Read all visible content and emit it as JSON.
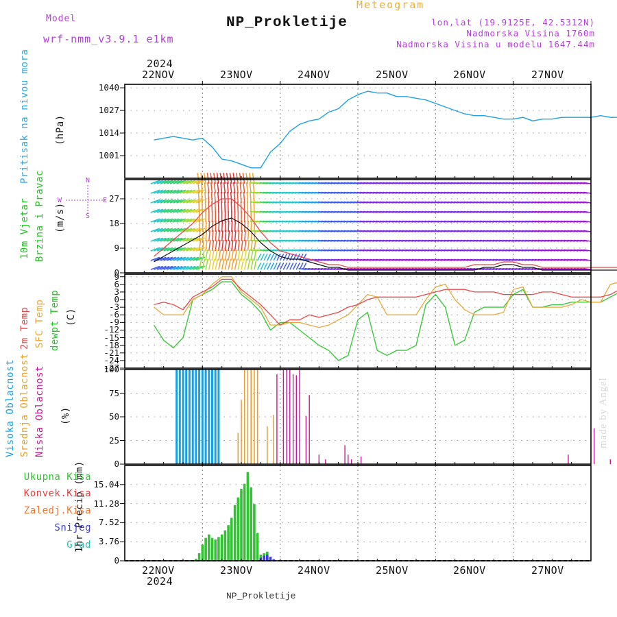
{
  "header": {
    "model_label": "Model",
    "model_name": "wrf-nmm_v3.9.1 e1km",
    "title": "NP_Prokletije",
    "meteogram_label": "Meteogram",
    "lonlat": "lon,lat (19.9125E, 42.5312N)",
    "elevation": "Nadmorska Visina 1760m",
    "model_elevation": "Nadmorska Visina u modelu 1647.44m",
    "footer_station": "NP_Prokletije",
    "watermark": "made by Angel"
  },
  "colors": {
    "pressure": "#1ea0e6",
    "temp2m": "#e84848",
    "sfc_temp": "#e8a838",
    "dewpt": "#3ac83a",
    "high_cloud": "#18a0e6",
    "mid_cloud": "#e8a030",
    "low_cloud": "#c8189a",
    "total_precip": "#33c233",
    "conv_precip": "#e83c3c",
    "freezing_precip": "#f07830",
    "snow": "#4040d8",
    "graupel": "#24c0b0",
    "header_purple": "#b03fd6"
  },
  "axes": {
    "year": "2024",
    "day_labels": [
      "22NOV",
      "23NOV",
      "24NOV",
      "25NOV",
      "26NOV",
      "27NOV"
    ]
  },
  "chart_data": [
    {
      "type": "line",
      "panel": "pressure",
      "title": "Pritisak na nivou mora",
      "ylabel": "(hPa)",
      "ylim": [
        988,
        1042
      ],
      "yticks": [
        1001,
        1014,
        1027,
        1040
      ],
      "x": [
        0,
        3,
        6,
        9,
        12,
        15,
        18,
        21,
        24,
        27,
        30,
        33,
        36,
        39,
        42,
        45,
        48,
        51,
        54,
        57,
        60,
        63,
        66,
        69,
        72,
        75,
        78,
        81,
        84,
        87,
        90,
        93,
        96,
        99,
        102,
        105,
        108,
        111,
        114,
        117,
        120,
        123,
        126,
        129,
        132,
        135,
        138,
        141,
        144
      ],
      "series": [
        {
          "values": [
            1010,
            1011,
            1012,
            1011,
            1010,
            1011,
            1006,
            999,
            998,
            996,
            994,
            994,
            1003,
            1008,
            1015,
            1019,
            1021,
            1022,
            1026,
            1028,
            1033,
            1036,
            1038,
            1037,
            1037,
            1035,
            1035,
            1034,
            1033,
            1031,
            1029,
            1027,
            1025,
            1024,
            1024,
            1023,
            1022,
            1022,
            1023,
            1021,
            1022,
            1022,
            1023,
            1023,
            1023,
            1023,
            1024,
            1023,
            1023
          ]
        }
      ]
    },
    {
      "type": "line",
      "panel": "wind",
      "title": "10m Vjetar Brzina i Pravac",
      "ylabel": "(m/s)",
      "compass": {
        "north": "N",
        "south": "S",
        "east": "E",
        "west": "W"
      },
      "ylim": [
        0,
        34
      ],
      "yticks": [
        0,
        9,
        18,
        27
      ],
      "x": [
        0,
        3,
        6,
        9,
        12,
        15,
        18,
        21,
        24,
        27,
        30,
        33,
        36,
        39,
        42,
        45,
        48,
        51,
        54,
        57,
        60,
        63,
        66,
        69,
        72,
        75,
        78,
        81,
        84,
        87,
        90,
        93,
        96,
        99,
        102,
        105,
        108,
        111,
        114,
        117,
        120,
        123,
        126,
        129,
        132,
        135,
        138,
        141,
        144
      ],
      "series": [
        {
          "name": "speed",
          "values": [
            4,
            6,
            8,
            10,
            12,
            14,
            17,
            19,
            20,
            18,
            15,
            11,
            8,
            6,
            5,
            5,
            4,
            3,
            2,
            2,
            1,
            1,
            1,
            1,
            1,
            1,
            1,
            1,
            1,
            1,
            1,
            1,
            1,
            1,
            2,
            2,
            3,
            3,
            2,
            2,
            1,
            1,
            1,
            1,
            1,
            1,
            1,
            1,
            1
          ]
        },
        {
          "name": "gust",
          "values": [
            6,
            9,
            12,
            15,
            18,
            22,
            25,
            27,
            27,
            24,
            20,
            15,
            11,
            8,
            7,
            6,
            5,
            4,
            3,
            3,
            2,
            2,
            2,
            2,
            2,
            2,
            2,
            2,
            2,
            2,
            2,
            2,
            2,
            3,
            3,
            3,
            4,
            4,
            3,
            3,
            2,
            2,
            2,
            2,
            2,
            2,
            2,
            2,
            2
          ]
        }
      ]
    },
    {
      "type": "line",
      "panel": "temperature",
      "title": "2m Temp / SFC Temp / dewpt Temp",
      "ylabel": "(C)",
      "ylim": [
        -27,
        10
      ],
      "yticks": [
        9,
        6,
        3,
        0,
        -3,
        -6,
        -9,
        -12,
        -15,
        -18,
        -21,
        -24,
        -27
      ],
      "x": [
        0,
        3,
        6,
        9,
        12,
        15,
        18,
        21,
        24,
        27,
        30,
        33,
        36,
        39,
        42,
        45,
        48,
        51,
        54,
        57,
        60,
        63,
        66,
        69,
        72,
        75,
        78,
        81,
        84,
        87,
        90,
        93,
        96,
        99,
        102,
        105,
        108,
        111,
        114,
        117,
        120,
        123,
        126,
        129,
        132,
        135,
        138,
        141,
        144
      ],
      "series": [
        {
          "name": "2m Temp",
          "values": [
            -2,
            -1,
            -2,
            -4,
            1,
            3,
            5,
            8,
            8,
            4,
            1,
            -2,
            -6,
            -10,
            -8,
            -8,
            -6,
            -7,
            -6,
            -5,
            -3,
            -2,
            0,
            1,
            1,
            1,
            1,
            1,
            2,
            3,
            4,
            4,
            4,
            3,
            3,
            3,
            2,
            2,
            2,
            2,
            3,
            3,
            2,
            1,
            1,
            1,
            1,
            2,
            4
          ]
        },
        {
          "name": "SFC Temp",
          "values": [
            -3,
            -6,
            -6,
            -6,
            0,
            2,
            6,
            9,
            9,
            3,
            0,
            -3,
            -10,
            -10,
            -9,
            -9,
            -10,
            -11,
            -10,
            -8,
            -6,
            -2,
            2,
            1,
            -6,
            -6,
            -6,
            -6,
            0,
            5,
            6,
            0,
            -4,
            -6,
            -6,
            -6,
            -5,
            4,
            5,
            -3,
            -3,
            -3,
            -3,
            -2,
            0,
            -1,
            -1,
            6,
            7
          ]
        },
        {
          "name": "dewpt Temp",
          "values": [
            -10,
            -16,
            -19,
            -15,
            0,
            2,
            4,
            7,
            7,
            2,
            -1,
            -5,
            -12,
            -9,
            -9,
            -12,
            -15,
            -18,
            -20,
            -24,
            -22,
            -8,
            -5,
            -20,
            -22,
            -20,
            -20,
            -18,
            -2,
            2,
            -3,
            -18,
            -16,
            -5,
            -3,
            -3,
            -3,
            2,
            4,
            -3,
            -3,
            -2,
            -2,
            -1,
            -1,
            -1,
            -1,
            1,
            3
          ]
        }
      ]
    },
    {
      "type": "bar",
      "panel": "clouds",
      "title": "Visoka Oblacnost / Srednja Oblacnost / Niska Oblacnost",
      "ylabel": "(%)",
      "ylim": [
        0,
        100
      ],
      "yticks": [
        0,
        25,
        50,
        75,
        100
      ],
      "series": [
        {
          "name": "Visoka Oblacnost",
          "x": [
            7,
            8,
            9,
            10,
            11,
            12,
            13,
            14,
            15,
            16,
            17,
            18,
            19,
            20
          ],
          "values": [
            100,
            100,
            100,
            100,
            100,
            100,
            100,
            100,
            100,
            100,
            100,
            100,
            100,
            100
          ]
        },
        {
          "name": "Srednja Oblacnost",
          "x": [
            26,
            27,
            28,
            29,
            30,
            31,
            32,
            35,
            37
          ],
          "values": [
            33,
            68,
            100,
            100,
            100,
            100,
            100,
            40,
            52
          ]
        },
        {
          "name": "Niska Oblacnost",
          "x": [
            38,
            40,
            41,
            42,
            43,
            44,
            45,
            47,
            48,
            51,
            53,
            59,
            60,
            61,
            64,
            128,
            136,
            141
          ],
          "values": [
            95,
            100,
            100,
            100,
            95,
            94,
            100,
            51,
            73,
            10,
            5,
            20,
            10,
            5,
            8,
            10,
            38,
            5
          ]
        }
      ]
    },
    {
      "type": "bar",
      "panel": "precipitation",
      "title": "Ukupna Kisa / Konvek.Kisa / Zaledj.Kisa / Snijeg / Grad",
      "ylabel": "1hr Precip (mm)",
      "ylim": [
        0,
        18.8
      ],
      "yticks": [
        0,
        3.76,
        7.52,
        11.28,
        15.04
      ],
      "legend": [
        "Ukupna Kisa",
        "Konvek.Kisa",
        "Zaledj.Kisa",
        "Snijeg",
        "Grad"
      ],
      "series": [
        {
          "name": "Ukupna Kisa",
          "x": [
            13,
            14,
            15,
            16,
            17,
            18,
            19,
            20,
            21,
            22,
            23,
            24,
            25,
            26,
            27,
            28,
            29,
            30,
            31,
            32,
            33,
            34,
            35,
            36
          ],
          "values": [
            0.4,
            1.5,
            3.2,
            4.5,
            5.2,
            4.5,
            4.2,
            4.7,
            5.2,
            6,
            7,
            8.5,
            11,
            12.5,
            14.2,
            15.2,
            17.5,
            14.5,
            11.2,
            5.5,
            1.2,
            1.5,
            1.8,
            0.5
          ]
        },
        {
          "name": "Snijeg",
          "x": [
            33,
            34,
            35,
            36,
            37
          ],
          "values": [
            0.6,
            1,
            1.2,
            0.8,
            0.3
          ]
        }
      ]
    }
  ]
}
